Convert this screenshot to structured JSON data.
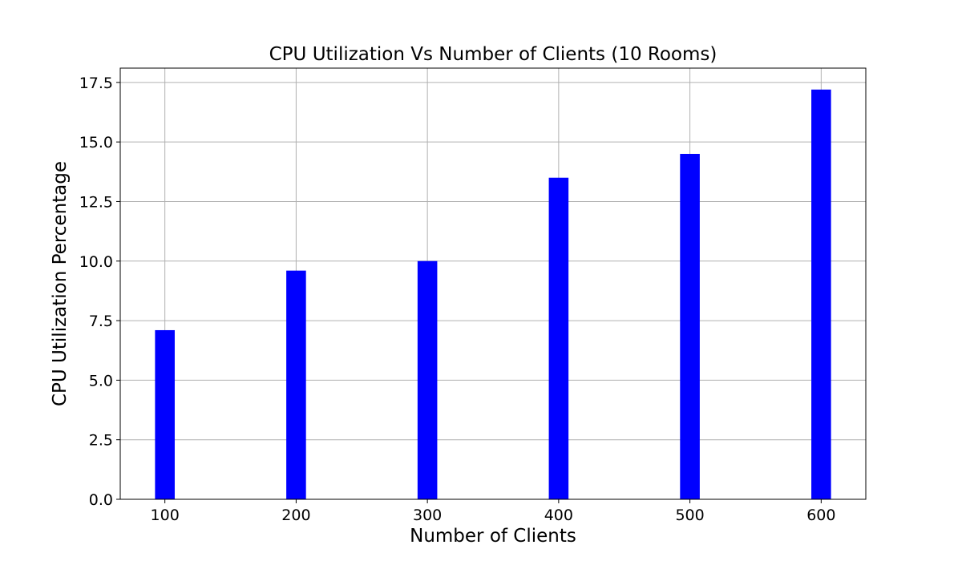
{
  "chart_data": {
    "type": "bar",
    "title": "CPU Utilization Vs Number of Clients (10 Rooms)",
    "xlabel": "Number of Clients",
    "ylabel": "CPU Utilization Percentage",
    "x": [
      100,
      200,
      300,
      400,
      500,
      600
    ],
    "x_tick_labels": [
      "100",
      "200",
      "300",
      "400",
      "500",
      "600"
    ],
    "values": [
      7.1,
      9.6,
      10.0,
      13.5,
      14.5,
      17.2
    ],
    "bar_width": 15,
    "xlim": [
      66,
      634
    ],
    "ylim": [
      0,
      18.1
    ],
    "y_ticks": [
      0.0,
      2.5,
      5.0,
      7.5,
      10.0,
      12.5,
      15.0,
      17.5
    ],
    "y_tick_labels": [
      "0.0",
      "2.5",
      "5.0",
      "7.5",
      "10.0",
      "12.5",
      "15.0",
      "17.5"
    ],
    "grid": true,
    "bar_color": "#0000ff",
    "grid_color": "#b0b0b0"
  }
}
